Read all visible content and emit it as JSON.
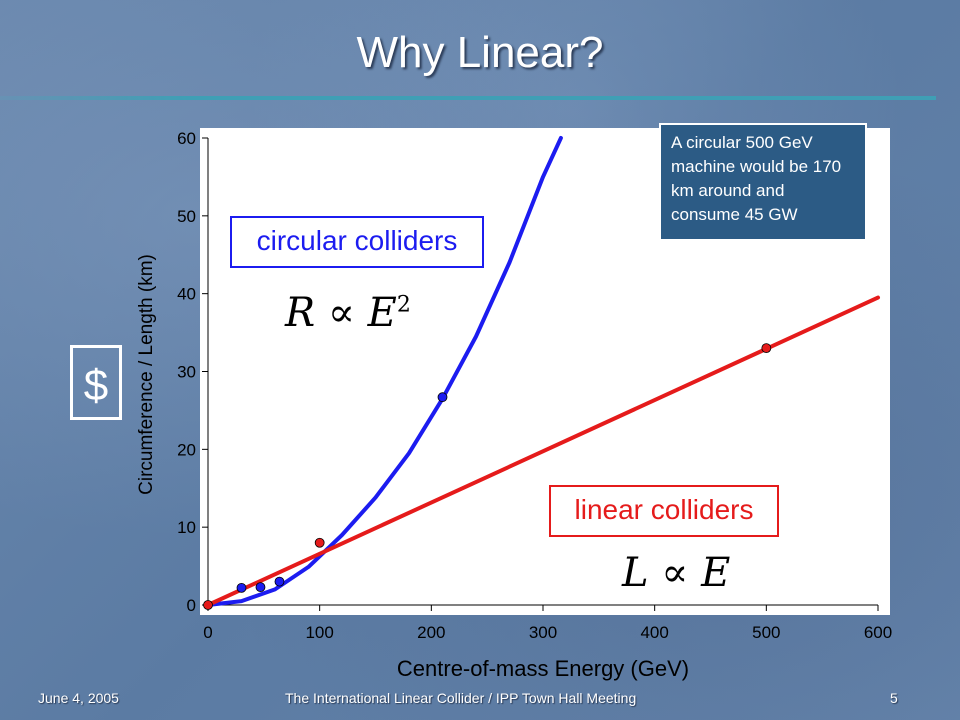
{
  "slide": {
    "title": "Why Linear?",
    "footer_date": "June 4, 2005",
    "footer_center": "The International Linear Collider / IPP Town Hall Meeting",
    "page_number": "5"
  },
  "annotations": {
    "circular_label": "circular colliders",
    "linear_label": "linear colliders",
    "note": "A circular 500 GeV machine would be 170 km around and consume 45 GW",
    "dollar": "$",
    "formula_circular_lhs": "R",
    "formula_circular_rhs": "E",
    "formula_circular_exp": "2",
    "formula_linear_lhs": "L",
    "formula_linear_rhs": "E",
    "proportional_symbol": "∝"
  },
  "colors": {
    "circular": "#1c1cf0",
    "linear": "#e51b1b",
    "plot_bg": "#ffffff"
  },
  "chart_data": {
    "type": "line",
    "title": "",
    "xlabel": "Centre-of-mass Energy (GeV)",
    "ylabel": "Circumference / Length (km)",
    "xlim": [
      0,
      600
    ],
    "ylim": [
      0,
      60
    ],
    "x_ticks": [
      "0",
      "100",
      "200",
      "300",
      "400",
      "500",
      "600"
    ],
    "y_ticks": [
      "0",
      "10",
      "20",
      "30",
      "40",
      "50",
      "60"
    ],
    "grid": false,
    "series": [
      {
        "name": "circular colliders",
        "color": "#1c1cf0",
        "curve": [
          [
            0,
            0
          ],
          [
            30,
            0.5
          ],
          [
            60,
            2
          ],
          [
            90,
            4.9
          ],
          [
            120,
            9
          ],
          [
            150,
            13.8
          ],
          [
            180,
            19.5
          ],
          [
            210,
            26.5
          ],
          [
            240,
            34.5
          ],
          [
            270,
            44
          ],
          [
            300,
            55
          ],
          [
            316,
            60
          ]
        ],
        "points": [
          [
            30,
            2.2
          ],
          [
            47,
            2.3
          ],
          [
            64,
            3.0
          ],
          [
            210,
            26.7
          ]
        ]
      },
      {
        "name": "linear colliders",
        "color": "#e51b1b",
        "curve": [
          [
            0,
            0
          ],
          [
            600,
            39.5
          ]
        ],
        "points": [
          [
            0,
            0
          ],
          [
            100,
            8
          ],
          [
            500,
            33
          ]
        ]
      }
    ]
  }
}
